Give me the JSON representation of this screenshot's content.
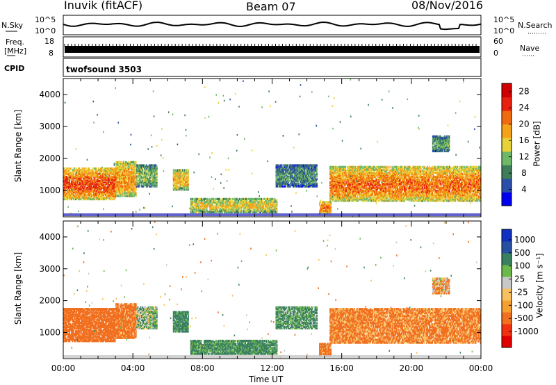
{
  "header": {
    "station": "Inuvik (fitACF)",
    "beam": "Beam 07",
    "date": "08/Nov/2016"
  },
  "top_panels": {
    "nsky_label": "N.Sky",
    "nsky_ticks": [
      "10^5",
      "10^0"
    ],
    "nsearch_label": "N.Search",
    "nsearch_ticks": [
      "10^5",
      "10^0"
    ],
    "freq_label_1": "Freq.",
    "freq_label_2": "[MHz]",
    "freq_ticks": [
      "18",
      "8"
    ],
    "nave_label": "Nave",
    "nave_ticks": [
      "60",
      "0"
    ],
    "cpid_label": "CPID",
    "cpid_value": "twofsound 3503"
  },
  "colors": {
    "power_scale": [
      "#0000ee",
      "#2b4fa8",
      "#3f7d5a",
      "#6fb86a",
      "#e8d23a",
      "#f4a21a",
      "#f06a10",
      "#e82010",
      "#d00000"
    ],
    "velocity_scale": [
      "#e00000",
      "#f03010",
      "#f07020",
      "#f4a030",
      "#f8c060",
      "#c8c8c8",
      "#6cb84a",
      "#3a8060",
      "#2850a0",
      "#1030c0"
    ]
  },
  "chart_data": [
    {
      "type": "heatmap",
      "title": "",
      "xlabel": "Time UT",
      "ylabel": "Slant Range [km]",
      "x_ticks": [
        "00:00",
        "04:00",
        "08:00",
        "12:00",
        "16:00",
        "20:00",
        "00:00"
      ],
      "y_ticks": [
        "1000",
        "2000",
        "3000",
        "4000"
      ],
      "xlim": [
        0,
        24
      ],
      "ylim": [
        180,
        4500
      ],
      "colorbar_label": "Power [dB]",
      "colorbar_ticks": [
        "4",
        "8",
        "12",
        "16",
        "20",
        "24",
        "28"
      ],
      "clim": [
        0,
        30
      ],
      "echo_regions": [
        {
          "t0": 0.0,
          "t1": 3.0,
          "r0": 700,
          "r1": 1700,
          "level": 26
        },
        {
          "t0": 3.0,
          "t1": 4.2,
          "r0": 800,
          "r1": 1900,
          "level": 22
        },
        {
          "t0": 4.2,
          "t1": 5.4,
          "r0": 1100,
          "r1": 1800,
          "level": 14
        },
        {
          "t0": 6.3,
          "t1": 7.2,
          "r0": 1000,
          "r1": 1650,
          "level": 20
        },
        {
          "t0": 7.3,
          "t1": 12.3,
          "r0": 300,
          "r1": 750,
          "level": 18
        },
        {
          "t0": 12.2,
          "t1": 14.6,
          "r0": 1100,
          "r1": 1800,
          "level": 10
        },
        {
          "t0": 14.7,
          "t1": 15.4,
          "r0": 250,
          "r1": 650,
          "level": 24
        },
        {
          "t0": 15.3,
          "t1": 24.0,
          "r0": 650,
          "r1": 1750,
          "level": 24
        },
        {
          "t0": 21.2,
          "t1": 22.2,
          "r0": 2200,
          "r1": 2700,
          "level": 12
        }
      ]
    },
    {
      "type": "heatmap",
      "title": "",
      "xlabel": "Time UT",
      "ylabel": "Slant Range [km]",
      "x_ticks": [
        "00:00",
        "04:00",
        "08:00",
        "12:00",
        "16:00",
        "20:00",
        "00:00"
      ],
      "y_ticks": [
        "1000",
        "2000",
        "3000",
        "4000"
      ],
      "xlim": [
        0,
        24
      ],
      "ylim": [
        180,
        4500
      ],
      "colorbar_label": "Velocity [m s⁻¹]",
      "colorbar_ticks": [
        "1000",
        "500",
        "100",
        "25",
        "-25",
        "-100",
        "-500",
        "-1000"
      ],
      "echo_regions": [
        {
          "t0": 0.0,
          "t1": 3.0,
          "r0": 700,
          "r1": 1750,
          "level": -300
        },
        {
          "t0": 3.0,
          "t1": 4.2,
          "r0": 800,
          "r1": 1900,
          "level": -200
        },
        {
          "t0": 4.2,
          "t1": 5.4,
          "r0": 1100,
          "r1": 1800,
          "level": 60
        },
        {
          "t0": 6.3,
          "t1": 7.2,
          "r0": 1000,
          "r1": 1650,
          "level": 200
        },
        {
          "t0": 7.3,
          "t1": 12.3,
          "r0": 300,
          "r1": 750,
          "level": 150
        },
        {
          "t0": 12.2,
          "t1": 14.6,
          "r0": 1100,
          "r1": 1800,
          "level": 120
        },
        {
          "t0": 14.7,
          "t1": 15.4,
          "r0": 250,
          "r1": 650,
          "level": -200
        },
        {
          "t0": 15.3,
          "t1": 24.0,
          "r0": 650,
          "r1": 1750,
          "level": -150
        },
        {
          "t0": 21.2,
          "t1": 22.2,
          "r0": 2200,
          "r1": 2700,
          "level": -80
        }
      ]
    }
  ]
}
